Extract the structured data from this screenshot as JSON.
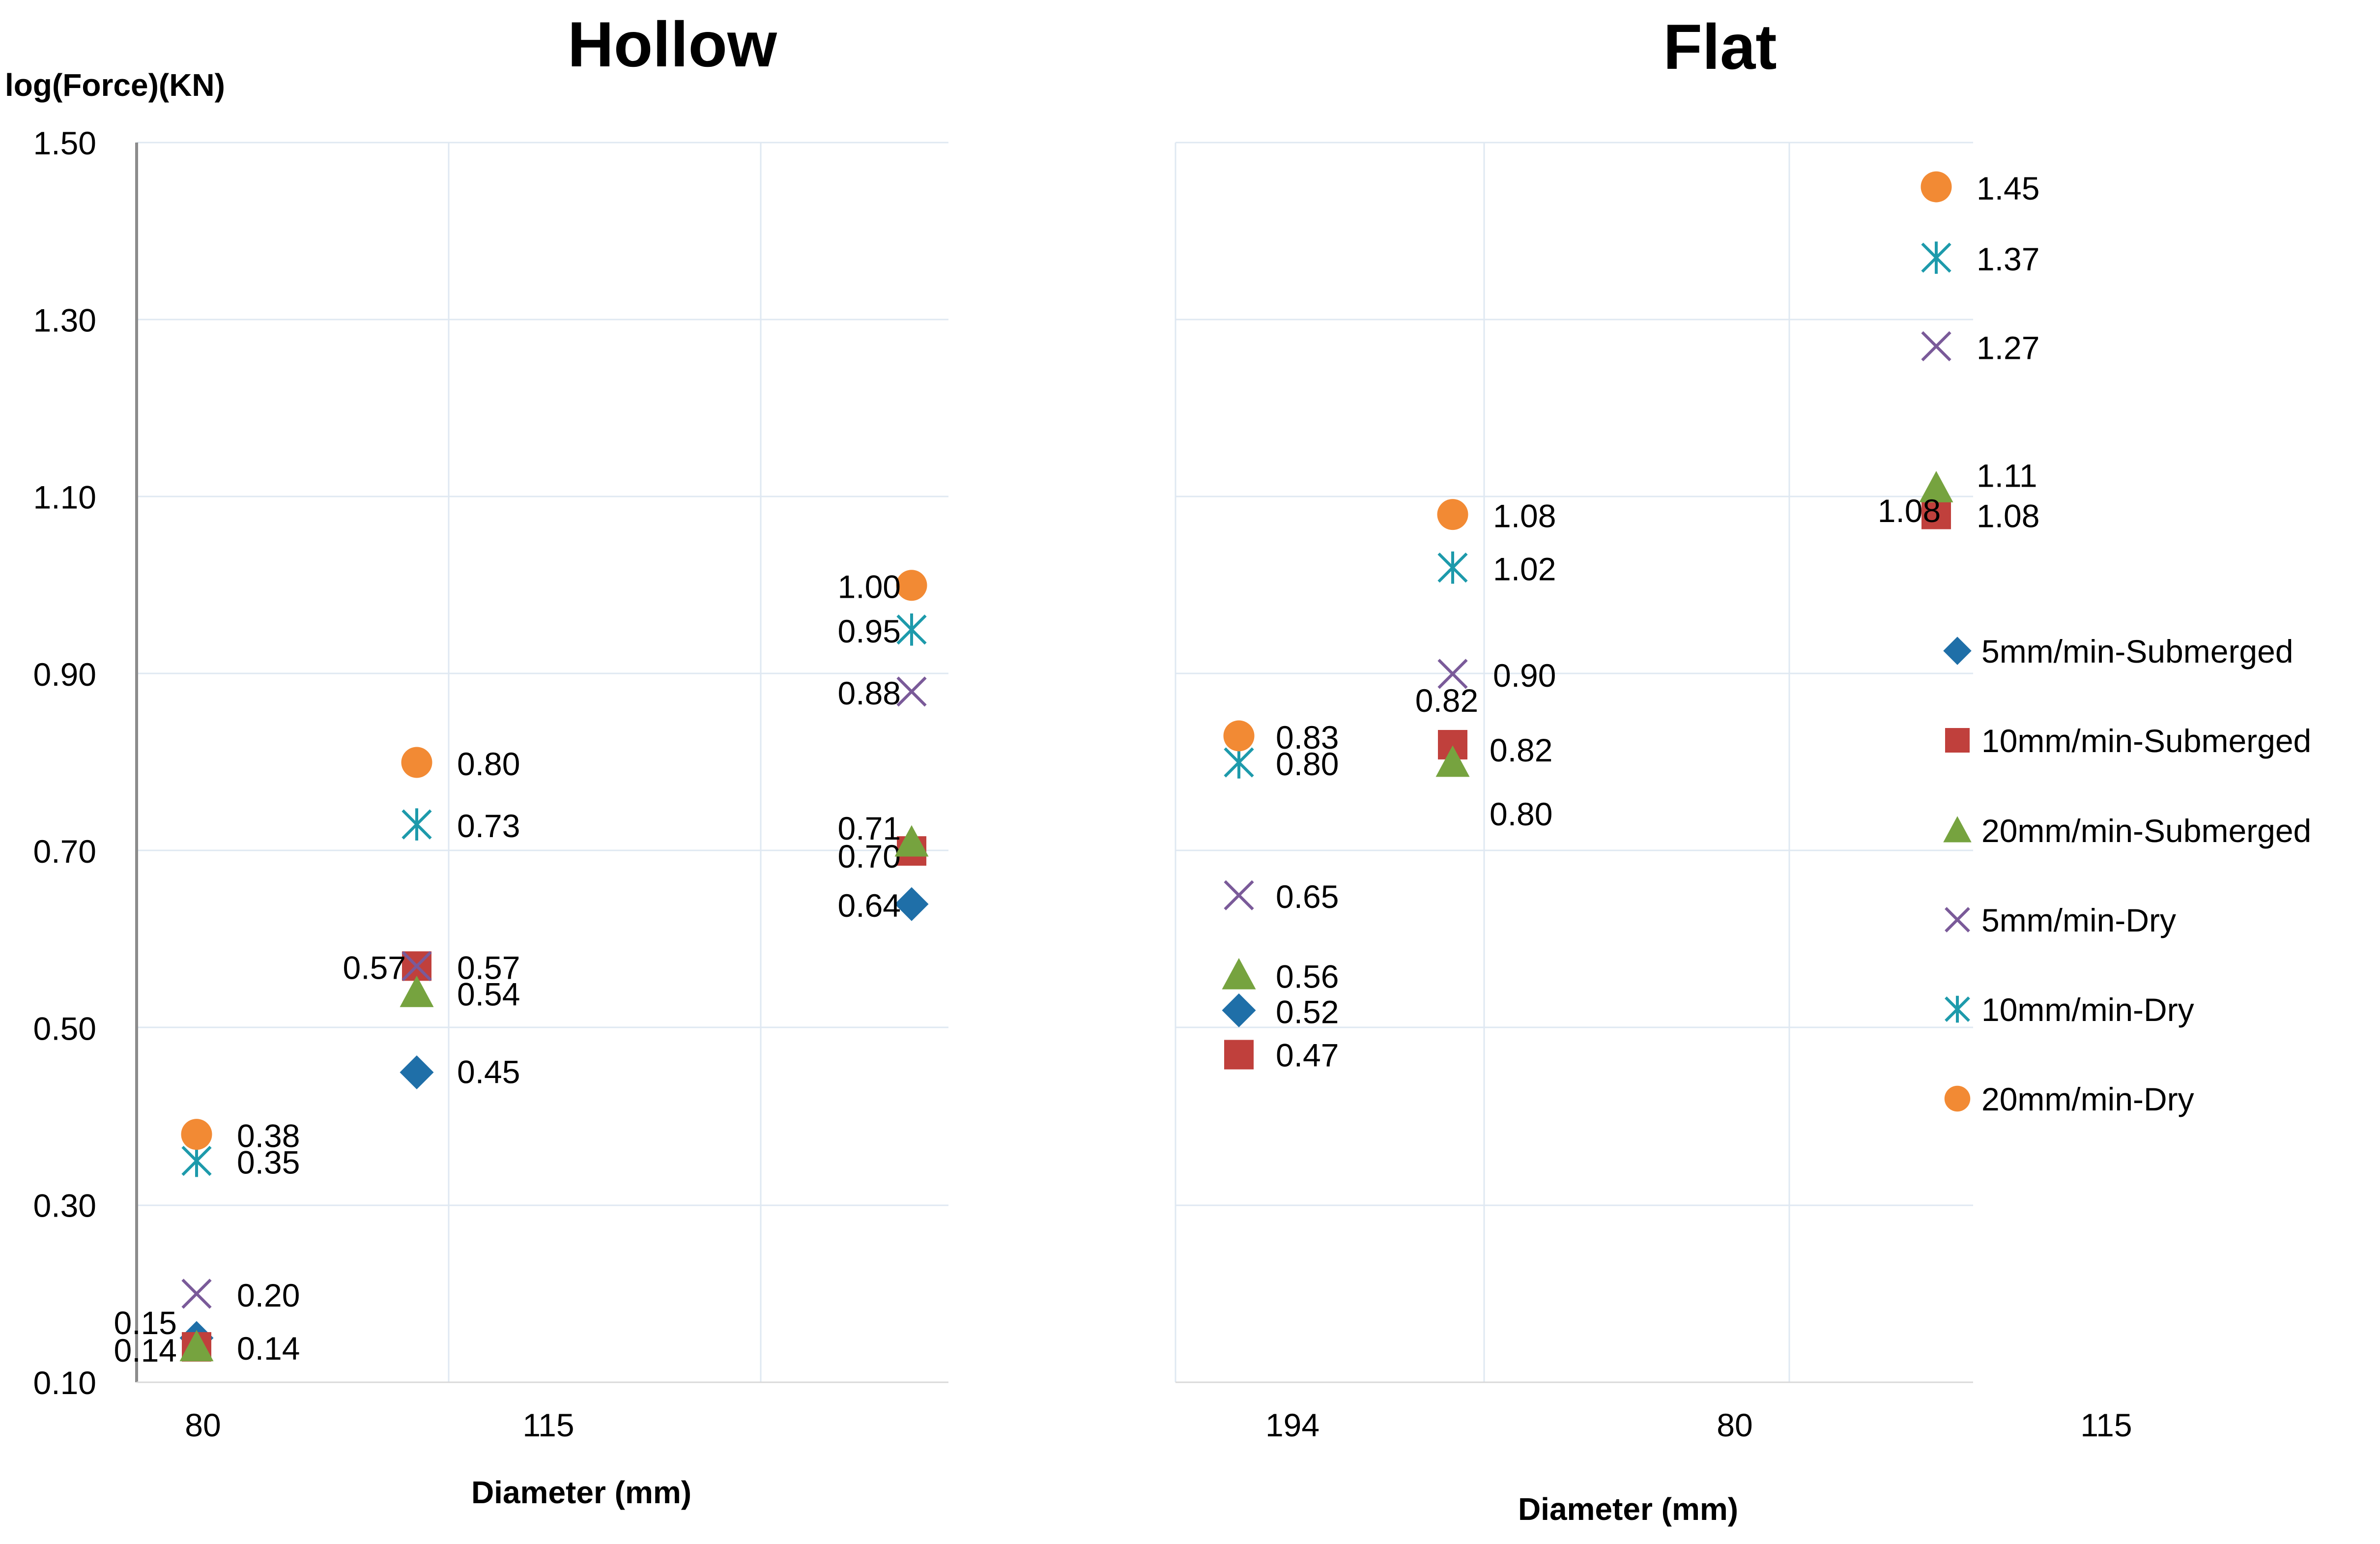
{
  "chart_data": [
    {
      "type": "scatter",
      "title": "Hollow",
      "ylabel": "log(Force)(KN)",
      "xlabel": "Diameter (mm)",
      "ylim": [
        0.1,
        1.5
      ],
      "ytick_labels": [
        "0.10",
        "0.30",
        "0.50",
        "0.70",
        "0.90",
        "1.10",
        "1.30",
        "1.50"
      ],
      "xtick_labels": [
        "80",
        "115"
      ],
      "series": [
        {
          "name": "5mm/min-Submerged",
          "points": [
            {
              "x": 1,
              "y": 0.15,
              "label": "0.15"
            },
            {
              "x": 2,
              "y": 0.45,
              "label": "0.45"
            },
            {
              "x": 3,
              "y": 0.64,
              "label": "0.64"
            }
          ]
        },
        {
          "name": "10mm/min-Submerged",
          "points": [
            {
              "x": 1,
              "y": 0.14,
              "label": "0.14"
            },
            {
              "x": 2,
              "y": 0.57,
              "label": "0.57"
            },
            {
              "x": 3,
              "y": 0.7,
              "label": "0.70"
            }
          ]
        },
        {
          "name": "20mm/min-Submerged",
          "points": [
            {
              "x": 1,
              "y": 0.14,
              "label": "0.14"
            },
            {
              "x": 2,
              "y": 0.54,
              "label": "0.54"
            },
            {
              "x": 3,
              "y": 0.71,
              "label": "0.71"
            }
          ]
        },
        {
          "name": "5mm/min-Dry",
          "points": [
            {
              "x": 1,
              "y": 0.2,
              "label": "0.20"
            },
            {
              "x": 2,
              "y": 0.57,
              "label": "0.57"
            },
            {
              "x": 3,
              "y": 0.88,
              "label": "0.88"
            }
          ]
        },
        {
          "name": "10mm/min-Dry",
          "points": [
            {
              "x": 1,
              "y": 0.35,
              "label": "0.35"
            },
            {
              "x": 2,
              "y": 0.73,
              "label": "0.73"
            },
            {
              "x": 3,
              "y": 0.95,
              "label": "0.95"
            }
          ]
        },
        {
          "name": "20mm/min-Dry",
          "points": [
            {
              "x": 1,
              "y": 0.38,
              "label": "0.38"
            },
            {
              "x": 2,
              "y": 0.8,
              "label": "0.80"
            },
            {
              "x": 3,
              "y": 1.0,
              "label": "1.00"
            }
          ]
        }
      ]
    },
    {
      "type": "scatter",
      "title": "Flat",
      "xlabel": "Diameter (mm)",
      "ylim": [
        0.1,
        1.5
      ],
      "xtick_labels": [
        "194",
        "80",
        "115"
      ],
      "series": [
        {
          "name": "5mm/min-Submerged",
          "points": [
            {
              "x": 1,
              "y": 0.52,
              "label": "0.52"
            }
          ]
        },
        {
          "name": "10mm/min-Submerged",
          "points": [
            {
              "x": 1,
              "y": 0.47,
              "label": "0.47"
            },
            {
              "x": 2,
              "y": 0.82,
              "label": "0.82"
            },
            {
              "x": 3,
              "y": 1.08,
              "label": "1.08"
            }
          ]
        },
        {
          "name": "20mm/min-Submerged",
          "points": [
            {
              "x": 1,
              "y": 0.56,
              "label": "0.56"
            },
            {
              "x": 2,
              "y": 0.8,
              "label": "0.80"
            },
            {
              "x": 3,
              "y": 1.11,
              "label": "1.11"
            }
          ]
        },
        {
          "name": "5mm/min-Dry",
          "points": [
            {
              "x": 1,
              "y": 0.65,
              "label": "0.65"
            },
            {
              "x": 2,
              "y": 0.9,
              "label": "0.90"
            },
            {
              "x": 3,
              "y": 1.27,
              "label": "1.27"
            }
          ]
        },
        {
          "name": "10mm/min-Dry",
          "points": [
            {
              "x": 1,
              "y": 0.8,
              "label": "0.80"
            },
            {
              "x": 2,
              "y": 1.02,
              "label": "1.02"
            },
            {
              "x": 3,
              "y": 1.37,
              "label": "1.37"
            }
          ]
        },
        {
          "name": "20mm/min-Dry",
          "points": [
            {
              "x": 1,
              "y": 0.83,
              "label": "0.83"
            },
            {
              "x": 2,
              "y": 1.08,
              "label": "1.08"
            },
            {
              "x": 3,
              "y": 1.45,
              "label": "1.45"
            }
          ]
        }
      ],
      "extra_labels": [
        "0.82",
        "1.08"
      ]
    }
  ],
  "legend": [
    {
      "name": "5mm/min-Submerged",
      "marker": "diamond",
      "color": "#1f6fa8"
    },
    {
      "name": "10mm/min-Submerged",
      "marker": "square",
      "color": "#c0403c"
    },
    {
      "name": "20mm/min-Submerged",
      "marker": "triangle",
      "color": "#76a33f"
    },
    {
      "name": "5mm/min-Dry",
      "marker": "x",
      "color": "#7a5a99"
    },
    {
      "name": "10mm/min-Dry",
      "marker": "star",
      "color": "#1d9aab"
    },
    {
      "name": "20mm/min-Dry",
      "marker": "circle",
      "color": "#f28a34"
    }
  ]
}
